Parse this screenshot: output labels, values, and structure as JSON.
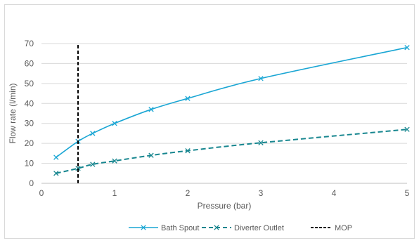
{
  "chart_data": {
    "type": "line",
    "title": "",
    "xlabel": "Pressure (bar)",
    "ylabel": "Flow rate (l/min)",
    "xlim": [
      0,
      5
    ],
    "ylim": [
      0,
      70
    ],
    "x_ticks": [
      "0",
      "1",
      "2",
      "3",
      "4",
      "5"
    ],
    "y_ticks": [
      "0",
      "10",
      "20",
      "30",
      "40",
      "50",
      "60",
      "70"
    ],
    "grid": "horizontal",
    "legend_position": "bottom",
    "series": [
      {
        "name": "Bath Spout",
        "style": "solid",
        "marker": "x",
        "color": "#1aa6d4",
        "x": [
          0.2,
          0.5,
          0.7,
          1.0,
          1.5,
          2.0,
          3.0,
          5.0
        ],
        "y": [
          13,
          21,
          25,
          30,
          37,
          42.5,
          52.5,
          68
        ]
      },
      {
        "name": "Diverter Outlet",
        "style": "dashed",
        "marker": "x",
        "color": "#17868f",
        "x": [
          0.2,
          0.5,
          0.7,
          1.0,
          1.5,
          2.0,
          3.0,
          5.0
        ],
        "y": [
          5,
          7.5,
          9.5,
          11.2,
          14,
          16.3,
          20.3,
          27
        ]
      },
      {
        "name": "MOP",
        "style": "dashed",
        "marker": "none",
        "color": "#000000",
        "x": [
          0.5,
          0.5
        ],
        "y": [
          0,
          70
        ]
      }
    ]
  }
}
